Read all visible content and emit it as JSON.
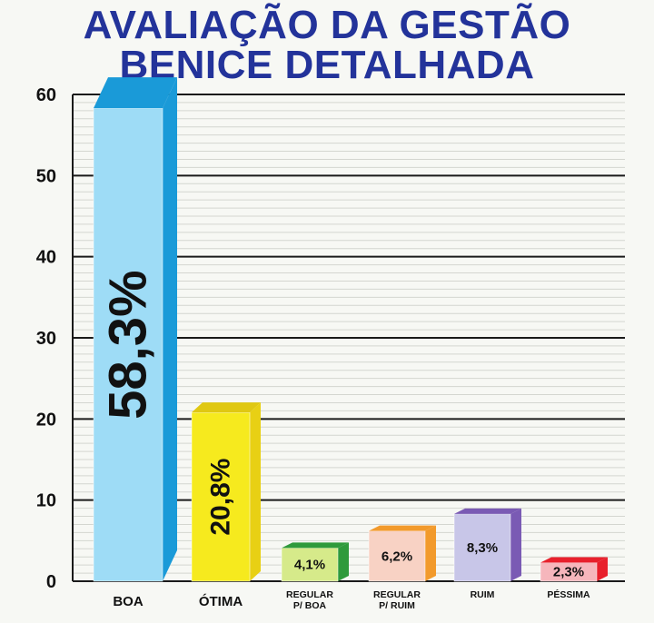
{
  "title_lines": [
    "AVALIAÇÃO DA GESTÃO",
    "BENICE DETALHADA"
  ],
  "chart_data": {
    "type": "bar",
    "title": "AVALIAÇÃO DA GESTÃO BENICE DETALHADA",
    "categories": [
      "BOA",
      "ÓTIMA",
      "REGULAR P/ BOA",
      "REGULAR P/ RUIM",
      "RUIM",
      "PÉSSIMA"
    ],
    "category_lines": [
      [
        "BOA"
      ],
      [
        "ÓTIMA"
      ],
      [
        "REGULAR",
        "P/ BOA"
      ],
      [
        "REGULAR",
        "P/ RUIM"
      ],
      [
        "RUIM"
      ],
      [
        "PÉSSIMA"
      ]
    ],
    "values": [
      58.3,
      20.8,
      4.1,
      6.2,
      8.3,
      2.3
    ],
    "value_labels": [
      "58,3%",
      "20,8%",
      "4,1%",
      "6,2%",
      "8,3%",
      "2,3%"
    ],
    "yticks": [
      0,
      10,
      20,
      30,
      40,
      50,
      60
    ],
    "ylim": [
      0,
      60
    ],
    "xlabel": "",
    "ylabel": "",
    "grid": true,
    "colors": [
      {
        "front": "#9edcf6",
        "top": "#1a9ad8",
        "side": "#1a9ad8"
      },
      {
        "front": "#f6ea1e",
        "top": "#e0c812",
        "side": "#e8d014"
      },
      {
        "front": "#d6ea8a",
        "top": "#2f9a3c",
        "side": "#2f9a3c"
      },
      {
        "front": "#f8d2c4",
        "top": "#f29a2c",
        "side": "#f29a2c"
      },
      {
        "front": "#c8c6e8",
        "top": "#7a5ab4",
        "side": "#7a5ab4"
      },
      {
        "front": "#f6b6bc",
        "top": "#e8202c",
        "side": "#e8202c"
      }
    ]
  }
}
